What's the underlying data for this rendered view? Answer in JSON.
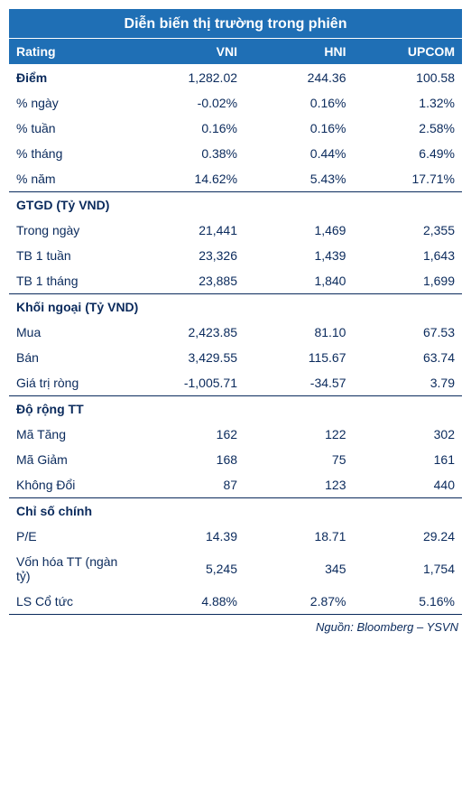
{
  "title": "Diễn biến thị trường trong phiên",
  "columns": {
    "c0": "Rating",
    "c1": "VNI",
    "c2": "HNI",
    "c3": "UPCOM"
  },
  "group1": {
    "r0": {
      "label": "Điểm",
      "v1": "1,282.02",
      "v2": "244.36",
      "v3": "100.58"
    },
    "r1": {
      "label": "% ngày",
      "v1": "-0.02%",
      "v2": "0.16%",
      "v3": "1.32%"
    },
    "r2": {
      "label": "% tuần",
      "v1": "0.16%",
      "v2": "0.16%",
      "v3": "2.58%"
    },
    "r3": {
      "label": "% tháng",
      "v1": "0.38%",
      "v2": "0.44%",
      "v3": "6.49%"
    },
    "r4": {
      "label": "% năm",
      "v1": "14.62%",
      "v2": "5.43%",
      "v3": "17.71%"
    }
  },
  "group2": {
    "title": "GTGD (Tỷ VND)",
    "r0": {
      "label": "Trong ngày",
      "v1": "21,441",
      "v2": "1,469",
      "v3": "2,355"
    },
    "r1": {
      "label": "TB 1 tuần",
      "v1": "23,326",
      "v2": "1,439",
      "v3": "1,643"
    },
    "r2": {
      "label": "TB 1 tháng",
      "v1": "23,885",
      "v2": "1,840",
      "v3": "1,699"
    }
  },
  "group3": {
    "title": "Khối ngoại (Tỷ VND)",
    "r0": {
      "label": "Mua",
      "v1": "2,423.85",
      "v2": "81.10",
      "v3": "67.53"
    },
    "r1": {
      "label": "Bán",
      "v1": "3,429.55",
      "v2": "115.67",
      "v3": "63.74"
    },
    "r2": {
      "label": "Giá trị ròng",
      "v1": "-1,005.71",
      "v2": "-34.57",
      "v3": "3.79"
    }
  },
  "group4": {
    "title": "Độ rộng TT",
    "r0": {
      "label": "Mã Tăng",
      "v1": "162",
      "v2": "122",
      "v3": "302"
    },
    "r1": {
      "label": "Mã Giảm",
      "v1": "168",
      "v2": "75",
      "v3": "161"
    },
    "r2": {
      "label": "Không Đổi",
      "v1": "87",
      "v2": "123",
      "v3": "440"
    }
  },
  "group5": {
    "title": "Chỉ số chính",
    "r0": {
      "label": "P/E",
      "v1": "14.39",
      "v2": "18.71",
      "v3": "29.24"
    },
    "r1": {
      "label": "Vốn hóa TT (ngàn tỷ)",
      "v1": "5,245",
      "v2": "345",
      "v3": "1,754"
    },
    "r2": {
      "label": "LS Cổ tức",
      "v1": "4.88%",
      "v2": "2.87%",
      "v3": "5.16%"
    }
  },
  "source": "Nguồn: Bloomberg – YSVN",
  "style": {
    "header_bg": "#1f6fb5",
    "header_text": "#ffffff",
    "body_text": "#0a2a5c",
    "border_color": "#0a2a5c",
    "title_fontsize": 16,
    "body_fontsize": 14
  }
}
